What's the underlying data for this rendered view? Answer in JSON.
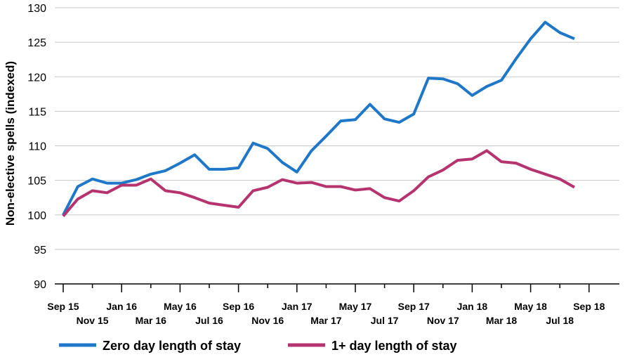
{
  "chart_data": {
    "type": "line",
    "title": "",
    "xlabel": "",
    "ylabel": "Non-elective spells (indexed)",
    "ylim": [
      90,
      130
    ],
    "yticks": [
      90,
      95,
      100,
      105,
      110,
      115,
      120,
      125,
      130
    ],
    "grid": "horizontal",
    "legend_position": "bottom",
    "x_tick_labels": [
      {
        "month_index": 0,
        "label": "Sep 15"
      },
      {
        "month_index": 2,
        "label": "Nov 15"
      },
      {
        "month_index": 4,
        "label": "Jan 16"
      },
      {
        "month_index": 6,
        "label": "Mar 16"
      },
      {
        "month_index": 8,
        "label": "May 16"
      },
      {
        "month_index": 10,
        "label": "Jul 16"
      },
      {
        "month_index": 12,
        "label": "Sep 16"
      },
      {
        "month_index": 14,
        "label": "Nov 16"
      },
      {
        "month_index": 16,
        "label": "Jan 17"
      },
      {
        "month_index": 18,
        "label": "Mar 17"
      },
      {
        "month_index": 20,
        "label": "May 17"
      },
      {
        "month_index": 22,
        "label": "Jul 17"
      },
      {
        "month_index": 24,
        "label": "Sep 17"
      },
      {
        "month_index": 26,
        "label": "Nov 17"
      },
      {
        "month_index": 28,
        "label": "Jan 18"
      },
      {
        "month_index": 30,
        "label": "Mar 18"
      },
      {
        "month_index": 32,
        "label": "May 18"
      },
      {
        "month_index": 34,
        "label": "Jul 18"
      },
      {
        "month_index": 36,
        "label": "Sep 18"
      }
    ],
    "series": [
      {
        "name": "Zero day length of stay",
        "color": "#1f77c8",
        "values": [
          100.0,
          104.1,
          105.2,
          104.6,
          104.6,
          105.1,
          105.9,
          106.4,
          107.5,
          108.7,
          106.6,
          106.6,
          106.8,
          110.4,
          109.6,
          107.6,
          106.2,
          109.3,
          111.4,
          113.6,
          113.8,
          116.0,
          113.9,
          113.4,
          114.6,
          119.8,
          119.7,
          119.0,
          117.3,
          118.6,
          119.5,
          122.6,
          125.5,
          127.9,
          126.4,
          125.5
        ]
      },
      {
        "name": "1+ day length of stay",
        "color": "#b5336e",
        "values": [
          99.8,
          102.3,
          103.5,
          103.2,
          104.3,
          104.3,
          105.2,
          103.5,
          103.2,
          102.5,
          101.7,
          101.4,
          101.1,
          103.5,
          104.0,
          105.1,
          104.6,
          104.7,
          104.1,
          104.1,
          103.6,
          103.8,
          102.5,
          102.0,
          103.5,
          105.5,
          106.5,
          107.9,
          108.1,
          109.3,
          107.7,
          107.5,
          106.6,
          105.9,
          105.2,
          104.0
        ]
      }
    ]
  }
}
